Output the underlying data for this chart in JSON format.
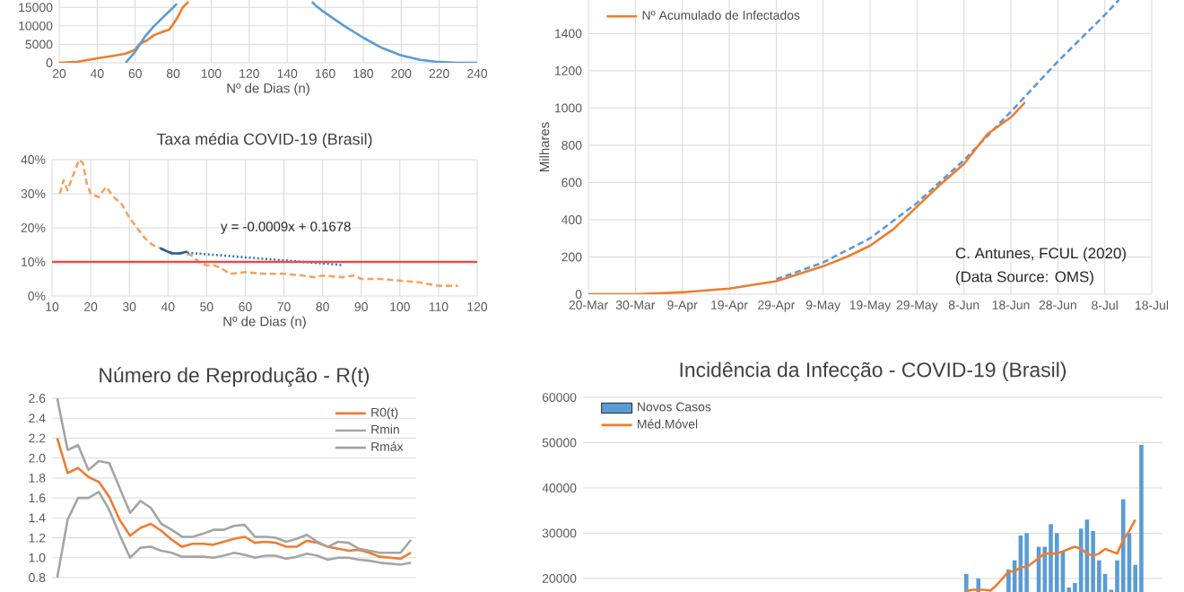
{
  "chart_data": [
    {
      "type": "line",
      "xlabel": "Nº de Dias (n)",
      "xlim": [
        20,
        240
      ],
      "ylim": [
        0,
        17000
      ],
      "xticks": [
        20,
        40,
        60,
        80,
        100,
        120,
        140,
        160,
        180,
        200,
        220,
        240
      ],
      "yticks": [
        0,
        5000,
        10000,
        15000
      ],
      "grid": true,
      "series": [
        {
          "color": "#ed7d31",
          "line_style": "solid",
          "x": [
            20,
            30,
            40,
            50,
            55,
            60,
            62,
            66,
            70,
            75,
            78,
            82,
            85,
            88
          ],
          "values": [
            0,
            300,
            1200,
            2000,
            2500,
            3500,
            5000,
            6000,
            7500,
            8500,
            9000,
            12000,
            15000,
            16500
          ]
        },
        {
          "color": "#5b9bd5",
          "line_style": "solid",
          "x": [
            55,
            60,
            65,
            70,
            75,
            80,
            82,
            117,
            153,
            155,
            160,
            170,
            180,
            190,
            200,
            210,
            220,
            230,
            240
          ],
          "values": [
            0,
            3000,
            7000,
            10000,
            12500,
            15000,
            16000,
            null,
            16500,
            15500,
            13500,
            10000,
            6800,
            4000,
            2000,
            800,
            200,
            0,
            0
          ]
        }
      ]
    },
    {
      "type": "line",
      "ylabel": "Milhares",
      "xlim": [
        "2020-03-20",
        "2020-07-18"
      ],
      "ylim": [
        0,
        1580
      ],
      "xticks": [
        {
          "value": "2020-03-20",
          "label": "20-Mar"
        },
        {
          "value": "2020-03-30",
          "label": "30-Mar"
        },
        {
          "value": "2020-04-09",
          "label": "9-Apr"
        },
        {
          "value": "2020-04-19",
          "label": "19-Apr"
        },
        {
          "value": "2020-04-29",
          "label": "29-Apr"
        },
        {
          "value": "2020-05-09",
          "label": "9-May"
        },
        {
          "value": "2020-05-19",
          "label": "19-May"
        },
        {
          "value": "2020-05-29",
          "label": "29-May"
        },
        {
          "value": "2020-06-08",
          "label": "8-Jun"
        },
        {
          "value": "2020-06-18",
          "label": "18-Jun"
        },
        {
          "value": "2020-06-28",
          "label": "28-Jun"
        },
        {
          "value": "2020-07-08",
          "label": "8-Jul"
        },
        {
          "value": "2020-07-18",
          "label": "18-Jul"
        }
      ],
      "yticks": [
        0,
        200,
        400,
        600,
        800,
        1000,
        1200,
        1400
      ],
      "grid": true,
      "legend": "top left",
      "annotations": [
        "C. Antunes, FCUL (2020)",
        "(Data Source: OMS)"
      ],
      "series": [
        {
          "color": "#5b9bd5",
          "line_style": "dashed",
          "x": [
            "2020-04-29",
            "2020-05-09",
            "2020-05-19",
            "2020-05-29",
            "2020-06-08",
            "2020-06-18",
            "2020-06-28",
            "2020-07-08",
            "2020-07-11"
          ],
          "values": [
            80,
            170,
            300,
            490,
            720,
            980,
            1250,
            1500,
            1580
          ]
        },
        {
          "name": "Nº Acumulado de Infectados",
          "color": "#ed7d31",
          "line_style": "solid",
          "x": [
            "2020-03-20",
            "2020-03-30",
            "2020-04-09",
            "2020-04-19",
            "2020-04-29",
            "2020-05-09",
            "2020-05-14",
            "2020-05-19",
            "2020-05-24",
            "2020-05-29",
            "2020-06-03",
            "2020-06-08",
            "2020-06-13",
            "2020-06-18",
            "2020-06-21"
          ],
          "values": [
            0,
            0,
            10,
            30,
            70,
            150,
            200,
            260,
            350,
            470,
            590,
            700,
            860,
            950,
            1030
          ]
        }
      ]
    },
    {
      "type": "line",
      "title": "Taxa média  COVID-19 (Brasil)",
      "xlabel": "Nº de Dias (n)",
      "xlim": [
        10,
        120
      ],
      "ylim": [
        0,
        0.4
      ],
      "xticks": [
        10,
        20,
        30,
        40,
        50,
        60,
        70,
        80,
        90,
        100,
        110,
        120
      ],
      "yticks": [
        {
          "value": 0,
          "label": "0%"
        },
        {
          "value": 0.1,
          "label": "10%"
        },
        {
          "value": 0.2,
          "label": "20%"
        },
        {
          "value": 0.3,
          "label": "30%"
        },
        {
          "value": 0.4,
          "label": "40%"
        }
      ],
      "grid": true,
      "ref_lines": [
        {
          "axis": "y",
          "value": 0.1,
          "color": "#e84c4c"
        }
      ],
      "annotations": [
        "y = -0.0009x + 0.1678"
      ],
      "series": [
        {
          "color": "#f4a460",
          "line_style": "dashed",
          "x": [
            12,
            13,
            14,
            16,
            17,
            18,
            19,
            20,
            22,
            24,
            26,
            28,
            30,
            32,
            34,
            36,
            38,
            40,
            42,
            44,
            46,
            48,
            50,
            52,
            54,
            56,
            60,
            65,
            70,
            75,
            78,
            80,
            85,
            88,
            90,
            95,
            100,
            105,
            110,
            115
          ],
          "values": [
            0.3,
            0.34,
            0.31,
            0.37,
            0.4,
            0.39,
            0.33,
            0.3,
            0.29,
            0.32,
            0.29,
            0.27,
            0.23,
            0.2,
            0.17,
            0.15,
            0.14,
            0.13,
            0.125,
            0.125,
            0.12,
            0.1,
            0.09,
            0.09,
            0.08,
            0.065,
            0.07,
            0.065,
            0.065,
            0.06,
            0.055,
            0.06,
            0.055,
            0.06,
            0.05,
            0.05,
            0.045,
            0.04,
            0.03,
            0.03
          ]
        },
        {
          "color": "#1f5f8b",
          "line_style": "solid",
          "x": [
            38,
            40,
            41,
            43,
            45
          ],
          "values": [
            0.14,
            0.13,
            0.125,
            0.125,
            0.13
          ]
        },
        {
          "color": "#4472c4",
          "line_style": "dotted",
          "x": [
            45,
            85
          ],
          "values": [
            0.127,
            0.091
          ]
        }
      ]
    },
    {
      "type": "line",
      "title": "Número de Reprodução - R(t)",
      "ylim": [
        0.8,
        2.6
      ],
      "tick_labels": "y",
      "categories": [
        null,
        null,
        null,
        null,
        null,
        null,
        null,
        null,
        null,
        null,
        null,
        null,
        null,
        null,
        null,
        null,
        null,
        null,
        null,
        null,
        null,
        null,
        null,
        null,
        null,
        null,
        null,
        null,
        null,
        null,
        null,
        null,
        null,
        null,
        null
      ],
      "yticks": [
        0.8,
        {
          "value": 1,
          "label": "1.0"
        },
        1.2,
        1.4,
        1.6,
        1.8,
        {
          "value": 2,
          "label": "2.0"
        },
        2.2,
        2.4,
        2.6
      ],
      "grid": "y",
      "legend": "top right",
      "series": [
        {
          "name": "R0(t)",
          "color": "#ed7d31",
          "line_style": "solid",
          "values": [
            2.2,
            1.85,
            1.9,
            1.81,
            1.76,
            1.61,
            1.38,
            1.22,
            1.3,
            1.34,
            1.27,
            1.18,
            1.11,
            1.14,
            1.14,
            1.13,
            1.16,
            1.19,
            1.21,
            1.15,
            1.16,
            1.15,
            1.11,
            1.11,
            1.17,
            1.15,
            1.11,
            1.09,
            1.07,
            1.08,
            1.05,
            1.01,
            1.0,
            0.99,
            1.05
          ]
        },
        {
          "name": "Rmin",
          "color": "#a5a5a5",
          "line_style": "solid",
          "values": [
            0.8,
            1.38,
            1.6,
            1.6,
            1.66,
            1.48,
            1.23,
            1.0,
            1.1,
            1.11,
            1.07,
            1.05,
            1.01,
            1.01,
            1.01,
            1.0,
            1.02,
            1.05,
            1.03,
            1.0,
            1.02,
            1.02,
            0.99,
            1.01,
            1.04,
            1.02,
            0.98,
            1.0,
            1.0,
            0.98,
            0.97,
            0.95,
            0.94,
            0.93,
            0.95
          ]
        },
        {
          "name": "Rmáx",
          "color": "#a5a5a5",
          "line_style": "solid",
          "values": [
            2.6,
            2.08,
            2.13,
            1.88,
            1.97,
            1.95,
            1.7,
            1.45,
            1.57,
            1.5,
            1.34,
            1.28,
            1.21,
            1.21,
            1.24,
            1.28,
            1.28,
            1.32,
            1.33,
            1.21,
            1.21,
            1.2,
            1.16,
            1.19,
            1.23,
            1.16,
            1.11,
            1.16,
            1.15,
            1.09,
            1.07,
            1.05,
            1.05,
            1.05,
            1.18
          ]
        }
      ]
    },
    {
      "type": "bar",
      "title": "Incidência da Infecção - COVID-19 (Brasil)",
      "ylim": [
        17000,
        61000
      ],
      "yticks": [
        20000,
        30000,
        40000,
        50000,
        60000
      ],
      "grid": "y",
      "legend": "top left",
      "tick_labels": "y",
      "categories": [
        null,
        null,
        null,
        null,
        null,
        null,
        null,
        null,
        null,
        null,
        null,
        null,
        null,
        null,
        null,
        null,
        null,
        null,
        null,
        null,
        null,
        null,
        null,
        null,
        null,
        null,
        null,
        null,
        null,
        null,
        null,
        null,
        null,
        null,
        null,
        null,
        null,
        null,
        null,
        null,
        null,
        null,
        null,
        null,
        null,
        null,
        null,
        null,
        null,
        null,
        null,
        null,
        null,
        null,
        null,
        null,
        null,
        null,
        null,
        null,
        null,
        null,
        null,
        null,
        null,
        null,
        null,
        null,
        null,
        null,
        null,
        null,
        null,
        null,
        null,
        null,
        null,
        null,
        null,
        null,
        null,
        null,
        null,
        null,
        null,
        null,
        null,
        null,
        null,
        null,
        null,
        null,
        null,
        null,
        null,
        null
      ],
      "series": [
        {
          "name": "Novos Casos",
          "color": "#5b9bd5",
          "values": [
            null,
            null,
            null,
            null,
            null,
            null,
            null,
            null,
            null,
            null,
            null,
            null,
            null,
            null,
            null,
            null,
            null,
            null,
            null,
            null,
            null,
            null,
            null,
            null,
            null,
            null,
            null,
            null,
            null,
            null,
            null,
            null,
            null,
            null,
            null,
            null,
            null,
            null,
            null,
            null,
            null,
            null,
            null,
            null,
            null,
            null,
            null,
            null,
            null,
            null,
            null,
            null,
            null,
            null,
            null,
            null,
            null,
            null,
            null,
            null,
            null,
            null,
            null,
            21000,
            null,
            20000,
            null,
            null,
            null,
            null,
            22000,
            24000,
            29500,
            30000,
            null,
            27000,
            27000,
            32000,
            30000,
            26000,
            18000,
            19000,
            31000,
            33000,
            30500,
            24000,
            21000,
            17500,
            24000,
            37500,
            30000,
            23000,
            49500,
            null,
            null,
            null
          ]
        },
        {
          "name": "Méd.Móvel",
          "type": "line",
          "color": "#ed7d31",
          "line_style": "solid",
          "values": [
            null,
            null,
            null,
            null,
            null,
            null,
            null,
            null,
            null,
            null,
            null,
            null,
            null,
            null,
            null,
            null,
            null,
            null,
            null,
            null,
            null,
            null,
            null,
            null,
            null,
            null,
            null,
            null,
            null,
            null,
            null,
            null,
            null,
            null,
            null,
            null,
            null,
            null,
            null,
            null,
            null,
            null,
            null,
            null,
            null,
            null,
            null,
            null,
            null,
            null,
            null,
            null,
            null,
            null,
            null,
            null,
            null,
            null,
            null,
            null,
            null,
            null,
            null,
            17200,
            17500,
            17500,
            17500,
            17300,
            18500,
            20000,
            21500,
            21500,
            22500,
            22500,
            23500,
            24500,
            25500,
            25500,
            25500,
            26000,
            26500,
            27000,
            26500,
            25500,
            25000,
            25500,
            26500,
            26000,
            25500,
            28500,
            30500,
            33000,
            null,
            null,
            null,
            null
          ]
        }
      ]
    }
  ]
}
